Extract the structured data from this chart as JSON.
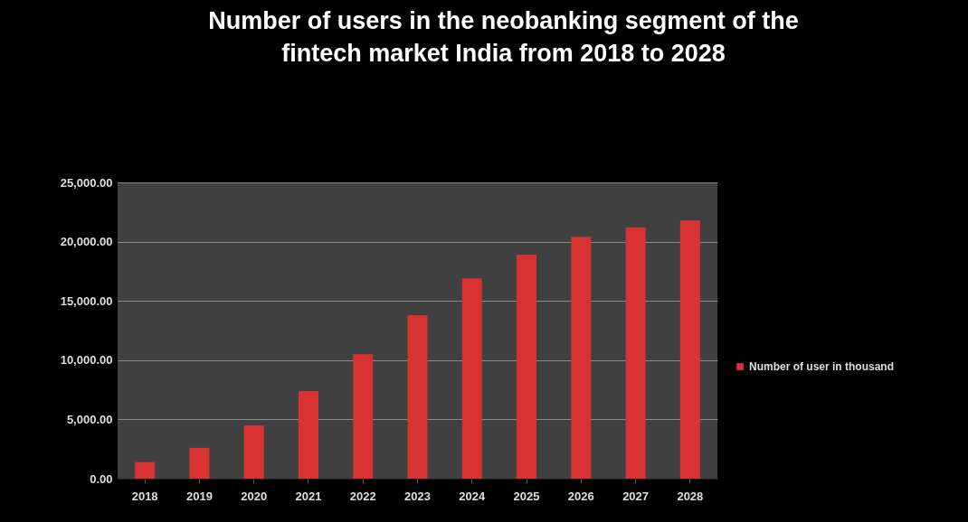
{
  "chart_data": {
    "type": "bar",
    "title": "Number of users in the neobanking segment of the fintech market India from 2018 to 2028",
    "categories": [
      "2018",
      "2019",
      "2020",
      "2021",
      "2022",
      "2023",
      "2024",
      "2025",
      "2026",
      "2027",
      "2028"
    ],
    "series": [
      {
        "name": "Number of user in thousand",
        "color": "#d93232",
        "values": [
          1400,
          2600,
          4500,
          7400,
          10500,
          13800,
          16900,
          18900,
          20400,
          21200,
          21800
        ]
      }
    ],
    "ylim": [
      0,
      25000
    ],
    "yticks": [
      {
        "value": 0,
        "label": "0.00"
      },
      {
        "value": 5000,
        "label": "5,000.00"
      },
      {
        "value": 10000,
        "label": "10,000.00"
      },
      {
        "value": 15000,
        "label": "15,000.00"
      },
      {
        "value": 20000,
        "label": "20,000.00"
      },
      {
        "value": 25000,
        "label": "25,000.00"
      }
    ],
    "grid": "y",
    "legend": "right"
  }
}
